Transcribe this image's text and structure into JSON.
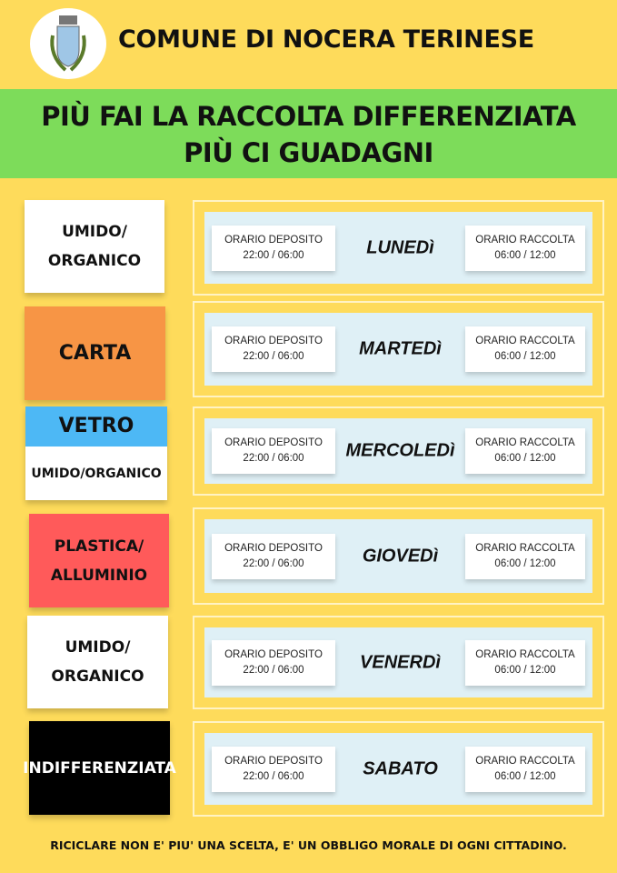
{
  "header": {
    "title": "COMUNE DI NOCERA TERINESE",
    "logo": "coat-of-arms"
  },
  "banner": {
    "line1": "PIÙ FAI LA RACCOLTA DIFFERENZIATA",
    "line2": "PIÙ CI GUADAGNI"
  },
  "colors": {
    "background": "#fedb5b",
    "banner": "#7ddc5a",
    "carta": "#f79545",
    "vetro": "#4db8f5",
    "plastica": "#ff5a5a",
    "indifferenziata": "#000000",
    "umido": "#ffffff"
  },
  "schedule": [
    {
      "segments": [
        {
          "text": "UMIDO/ ORGANICO",
          "bg": "#ffffff",
          "color": "#111"
        }
      ],
      "day": "LUNEDì",
      "deposit_label": "ORARIO DEPOSITO",
      "deposit_time": "22:00 / 06:00",
      "collect_label": "ORARIO RACCOLTA",
      "collect_time": "06:00 / 12:00"
    },
    {
      "segments": [
        {
          "text": "CARTA",
          "bg": "#f79545",
          "color": "#111"
        }
      ],
      "day": "MARTEDì",
      "deposit_label": "ORARIO DEPOSITO",
      "deposit_time": "22:00 / 06:00",
      "collect_label": "ORARIO RACCOLTA",
      "collect_time": "06:00 / 12:00"
    },
    {
      "segments": [
        {
          "text": "VETRO",
          "bg": "#4db8f5",
          "color": "#111"
        },
        {
          "text": "UMIDO/ORGANICO",
          "bg": "#ffffff",
          "color": "#111"
        }
      ],
      "day": "MERCOLEDì",
      "deposit_label": "ORARIO DEPOSITO",
      "deposit_time": "22:00 / 06:00",
      "collect_label": "ORARIO RACCOLTA",
      "collect_time": "06:00 / 12:00"
    },
    {
      "segments": [
        {
          "text": "PLASTICA/ ALLUMINIO",
          "bg": "#ff5a5a",
          "color": "#111"
        }
      ],
      "day": "GIOVEDì",
      "deposit_label": "ORARIO DEPOSITO",
      "deposit_time": "22:00 / 06:00",
      "collect_label": "ORARIO RACCOLTA",
      "collect_time": "06:00 / 12:00"
    },
    {
      "segments": [
        {
          "text": "UMIDO/ ORGANICO",
          "bg": "#ffffff",
          "color": "#111"
        }
      ],
      "day": "VENERDì",
      "deposit_label": "ORARIO DEPOSITO",
      "deposit_time": "22:00 / 06:00",
      "collect_label": "ORARIO RACCOLTA",
      "collect_time": "06:00 / 12:00"
    },
    {
      "segments": [
        {
          "text": "INDIFFERENZIATA",
          "bg": "#000000",
          "color": "#ffffff"
        }
      ],
      "day": "SABATO",
      "deposit_label": "ORARIO DEPOSITO",
      "deposit_time": "22:00 / 06:00",
      "collect_label": "ORARIO RACCOLTA",
      "collect_time": "06:00 / 12:00"
    }
  ],
  "footer": "RICICLARE NON E' PIU' UNA SCELTA, E' UN OBBLIGO MORALE DI OGNI CITTADINO."
}
